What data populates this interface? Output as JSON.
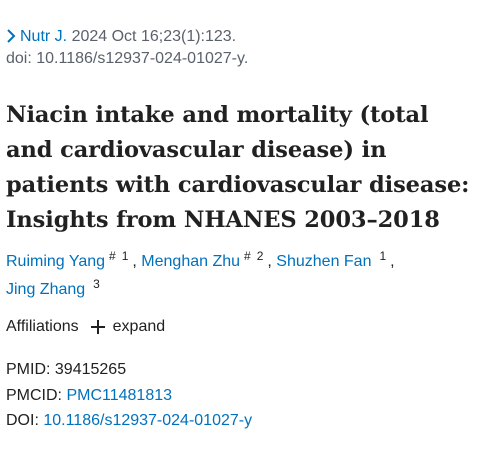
{
  "citation": {
    "journal": "Nutr J.",
    "details": " 2024 Oct 16;23(1):123.",
    "doi_line": "doi: 10.1186/s12937-024-01027-y."
  },
  "title": "Niacin intake and mortality (total and cardiovascular disease) in patients with cardiovascular disease: Insights from NHANES 2003–2018",
  "authors": [
    {
      "name": "Ruiming Yang",
      "mark": "#",
      "aff": "1"
    },
    {
      "name": "Menghan Zhu",
      "mark": "#",
      "aff": "2"
    },
    {
      "name": "Shuzhen Fan",
      "mark": "",
      "aff": "1"
    },
    {
      "name": "Jing Zhang",
      "mark": "",
      "aff": "3"
    }
  ],
  "affiliations": {
    "label": "Affiliations",
    "expand_label": "expand"
  },
  "identifiers": {
    "pmid_label": "PMID:",
    "pmid": "39415265",
    "pmcid_label": "PMCID:",
    "pmcid": "PMC11481813",
    "doi_label": "DOI:",
    "doi": "10.1186/s12937-024-01027-y"
  },
  "colors": {
    "link": "#0071bc",
    "text": "#212121",
    "muted": "#5b616b"
  }
}
